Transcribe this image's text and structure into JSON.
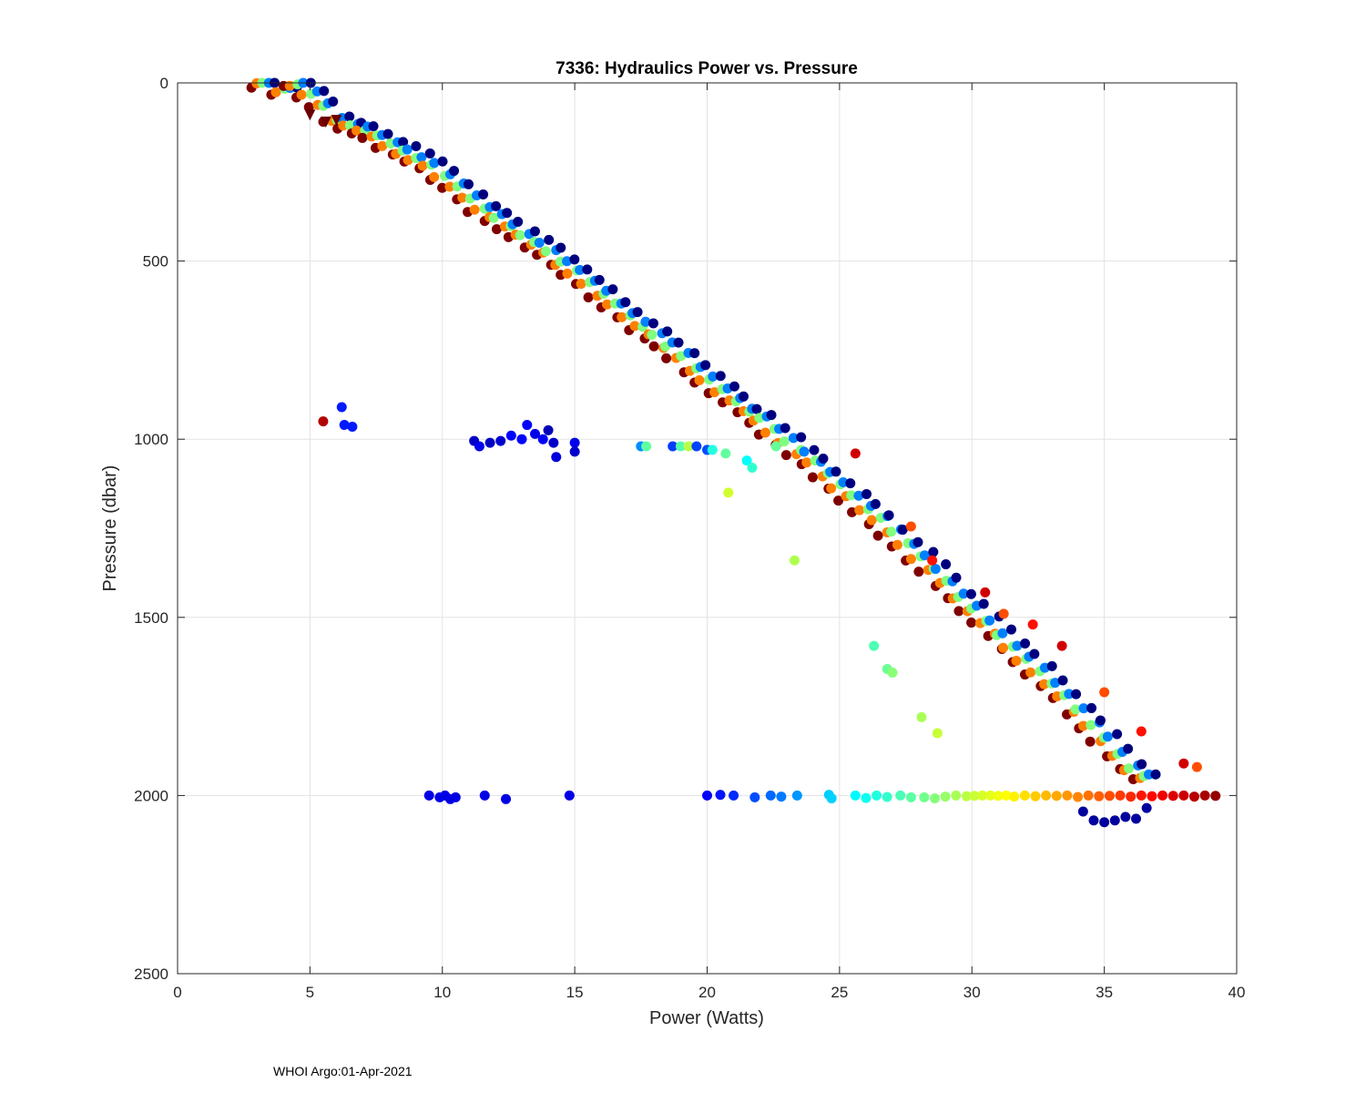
{
  "chart_data": {
    "type": "scatter",
    "title": "7336: Hydraulics Power vs. Pressure",
    "xlabel": "Power (Watts)",
    "ylabel": "Pressure (dbar)",
    "xlim": [
      0,
      40
    ],
    "ylim": [
      0,
      2500
    ],
    "y_reversed": true,
    "grid": true,
    "xticks": [
      "0",
      "5",
      "10",
      "15",
      "20",
      "25",
      "30",
      "35",
      "40"
    ],
    "yticks": [
      "0",
      "500",
      "1000",
      "1500",
      "2000",
      "2500"
    ],
    "colormap": "jet",
    "color_ramp": [
      "#00007f",
      "#0000ff",
      "#0080ff",
      "#00ffff",
      "#80ff80",
      "#ffff00",
      "#ff8000",
      "#ff0000",
      "#7f0000"
    ],
    "marker_color_index_range": [
      0,
      1
    ],
    "main_trend": [
      [
        3.2,
        0
      ],
      [
        4.0,
        20
      ],
      [
        4.5,
        0
      ],
      [
        5.0,
        30
      ],
      [
        5.5,
        60
      ],
      [
        6.0,
        100
      ],
      [
        6.5,
        120
      ],
      [
        7.0,
        130
      ],
      [
        7.5,
        150
      ],
      [
        8.0,
        170
      ],
      [
        8.5,
        190
      ],
      [
        9.0,
        210
      ],
      [
        9.5,
        230
      ],
      [
        10.0,
        260
      ],
      [
        10.5,
        290
      ],
      [
        11.0,
        320
      ],
      [
        11.5,
        350
      ],
      [
        12.0,
        375
      ],
      [
        12.5,
        400
      ],
      [
        13.0,
        425
      ],
      [
        13.5,
        450
      ],
      [
        14.0,
        475
      ],
      [
        14.5,
        505
      ],
      [
        15.0,
        530
      ],
      [
        15.5,
        560
      ],
      [
        16.0,
        590
      ],
      [
        16.5,
        620
      ],
      [
        17.0,
        650
      ],
      [
        17.5,
        680
      ],
      [
        18.0,
        705
      ],
      [
        18.5,
        735
      ],
      [
        19.0,
        765
      ],
      [
        19.5,
        800
      ],
      [
        20.0,
        830
      ],
      [
        20.5,
        860
      ],
      [
        21.0,
        890
      ],
      [
        21.5,
        920
      ],
      [
        22.0,
        945
      ],
      [
        22.5,
        975
      ],
      [
        23.0,
        1005
      ],
      [
        23.5,
        1035
      ],
      [
        24.0,
        1065
      ],
      [
        24.5,
        1100
      ],
      [
        25.0,
        1130
      ],
      [
        25.5,
        1160
      ],
      [
        26.0,
        1195
      ],
      [
        26.5,
        1225
      ],
      [
        27.0,
        1260
      ],
      [
        27.5,
        1295
      ],
      [
        28.0,
        1330
      ],
      [
        28.5,
        1365
      ],
      [
        29.0,
        1400
      ],
      [
        29.5,
        1440
      ],
      [
        30.0,
        1475
      ],
      [
        30.5,
        1510
      ],
      [
        31.0,
        1545
      ],
      [
        31.5,
        1580
      ],
      [
        32.0,
        1615
      ],
      [
        32.5,
        1650
      ],
      [
        33.0,
        1685
      ],
      [
        33.5,
        1720
      ],
      [
        34.0,
        1760
      ],
      [
        34.5,
        1800
      ],
      [
        35.0,
        1840
      ],
      [
        35.5,
        1880
      ],
      [
        36.0,
        1920
      ],
      [
        36.5,
        1950
      ]
    ],
    "band_1000_points": [
      [
        5.5,
        950
      ],
      [
        6.2,
        910
      ],
      [
        6.3,
        960
      ],
      [
        6.6,
        965
      ],
      [
        11.2,
        1005
      ],
      [
        11.4,
        1020
      ],
      [
        11.8,
        1010
      ],
      [
        12.2,
        1005
      ],
      [
        12.6,
        990
      ],
      [
        13.0,
        1000
      ],
      [
        13.2,
        960
      ],
      [
        13.5,
        985
      ],
      [
        13.8,
        1000
      ],
      [
        14.0,
        975
      ],
      [
        14.2,
        1010
      ],
      [
        14.3,
        1050
      ],
      [
        15.0,
        1010
      ],
      [
        15.0,
        1035
      ],
      [
        17.5,
        1020
      ],
      [
        17.7,
        1020
      ],
      [
        18.7,
        1020
      ],
      [
        19.0,
        1020
      ],
      [
        19.3,
        1020
      ],
      [
        19.6,
        1020
      ],
      [
        20.0,
        1030
      ],
      [
        20.2,
        1030
      ],
      [
        20.7,
        1040
      ],
      [
        20.8,
        1150
      ],
      [
        21.5,
        1060
      ],
      [
        21.7,
        1080
      ],
      [
        22.6,
        1020
      ],
      [
        23.3,
        1340
      ]
    ],
    "band_2000_points": [
      [
        9.5,
        2000
      ],
      [
        9.9,
        2005
      ],
      [
        10.1,
        2000
      ],
      [
        10.3,
        2010
      ],
      [
        10.5,
        2005
      ],
      [
        11.6,
        2000
      ],
      [
        12.4,
        2010
      ],
      [
        14.8,
        2000
      ],
      [
        20.0,
        2000
      ],
      [
        20.5,
        1998
      ],
      [
        21.0,
        2000
      ],
      [
        21.8,
        2005
      ],
      [
        22.4,
        2000
      ],
      [
        22.8,
        2003
      ],
      [
        23.4,
        2000
      ],
      [
        24.6,
        1998
      ],
      [
        24.7,
        2008
      ],
      [
        25.6,
        2000
      ],
      [
        26.0,
        2007
      ],
      [
        26.4,
        2000
      ],
      [
        26.8,
        2004
      ],
      [
        27.3,
        2000
      ],
      [
        27.7,
        2005
      ],
      [
        28.2,
        2005
      ],
      [
        28.6,
        2008
      ],
      [
        29.0,
        2003
      ],
      [
        29.4,
        2000
      ],
      [
        29.8,
        2002
      ],
      [
        30.1,
        2001
      ],
      [
        30.4,
        2000
      ],
      [
        30.7,
        2000
      ],
      [
        31.0,
        2001
      ],
      [
        31.3,
        2000
      ],
      [
        31.6,
        2003
      ],
      [
        32.0,
        2000
      ],
      [
        32.4,
        2002
      ],
      [
        32.8,
        2000
      ],
      [
        33.2,
        2001
      ],
      [
        33.6,
        2000
      ],
      [
        34.0,
        2004
      ],
      [
        34.4,
        2000
      ],
      [
        34.8,
        2002
      ],
      [
        35.2,
        2001
      ],
      [
        35.6,
        2000
      ],
      [
        36.0,
        2003
      ],
      [
        36.4,
        2000
      ],
      [
        36.8,
        2002
      ],
      [
        37.2,
        2000
      ],
      [
        37.6,
        2001
      ],
      [
        38.0,
        2000
      ],
      [
        38.4,
        2003
      ],
      [
        38.8,
        2000
      ],
      [
        39.2,
        2001
      ],
      [
        34.2,
        2045
      ],
      [
        34.6,
        2070
      ],
      [
        35.0,
        2075
      ],
      [
        35.4,
        2070
      ],
      [
        35.8,
        2060
      ],
      [
        36.2,
        2065
      ],
      [
        36.6,
        2035
      ]
    ],
    "outlier_points": [
      [
        26.3,
        1580
      ],
      [
        26.8,
        1645
      ],
      [
        27.0,
        1655
      ],
      [
        28.1,
        1780
      ],
      [
        28.7,
        1825
      ],
      [
        25.6,
        1040
      ],
      [
        27.7,
        1245
      ],
      [
        28.5,
        1340
      ],
      [
        30.5,
        1430
      ],
      [
        31.2,
        1490
      ],
      [
        32.3,
        1520
      ],
      [
        33.4,
        1580
      ],
      [
        35.0,
        1710
      ],
      [
        36.4,
        1820
      ],
      [
        38.0,
        1910
      ],
      [
        38.5,
        1920
      ]
    ],
    "triangle_markers": [
      [
        5.0,
        90
      ],
      [
        5.6,
        110
      ],
      [
        6.0,
        105
      ]
    ],
    "footer": "WHOI Argo:01-Apr-2021"
  }
}
